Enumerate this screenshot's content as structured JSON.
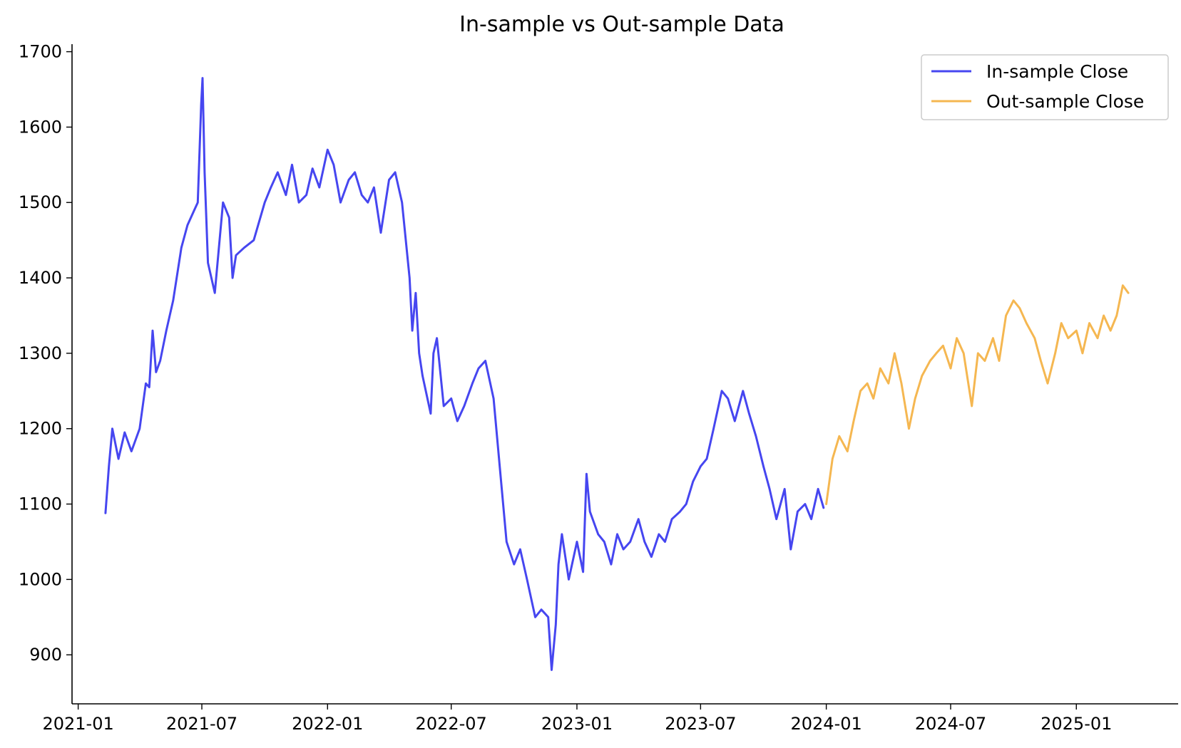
{
  "chart_data": {
    "type": "line",
    "title": "In-sample vs Out-sample Data",
    "xlabel": "",
    "ylabel": "",
    "x_type": "date",
    "xlim": [
      "2020-12-23",
      "2025-05-30"
    ],
    "ylim": [
      835,
      1710
    ],
    "grid": false,
    "legend_position": "top-right",
    "x_ticks": [
      "2021-01",
      "2021-07",
      "2022-01",
      "2022-07",
      "2023-01",
      "2023-07",
      "2024-01",
      "2024-07",
      "2025-01"
    ],
    "y_ticks": [
      900,
      1000,
      1100,
      1200,
      1300,
      1400,
      1500,
      1600,
      1700
    ],
    "series": [
      {
        "name": "In-sample Close",
        "color": "#4646f0",
        "x": [
          "2021-02-10",
          "2021-02-15",
          "2021-02-20",
          "2021-03-01",
          "2021-03-10",
          "2021-03-20",
          "2021-04-01",
          "2021-04-10",
          "2021-04-15",
          "2021-04-20",
          "2021-04-25",
          "2021-05-01",
          "2021-05-10",
          "2021-05-20",
          "2021-06-01",
          "2021-06-10",
          "2021-06-20",
          "2021-06-25",
          "2021-06-30",
          "2021-07-02",
          "2021-07-05",
          "2021-07-10",
          "2021-07-15",
          "2021-07-20",
          "2021-08-01",
          "2021-08-10",
          "2021-08-15",
          "2021-08-20",
          "2021-09-01",
          "2021-09-15",
          "2021-10-01",
          "2021-10-10",
          "2021-10-20",
          "2021-11-01",
          "2021-11-10",
          "2021-11-20",
          "2021-12-01",
          "2021-12-10",
          "2021-12-20",
          "2022-01-01",
          "2022-01-10",
          "2022-01-20",
          "2022-02-01",
          "2022-02-10",
          "2022-02-20",
          "2022-03-01",
          "2022-03-10",
          "2022-03-20",
          "2022-04-01",
          "2022-04-10",
          "2022-04-20",
          "2022-05-01",
          "2022-05-05",
          "2022-05-10",
          "2022-05-15",
          "2022-05-20",
          "2022-06-01",
          "2022-06-05",
          "2022-06-10",
          "2022-06-20",
          "2022-07-01",
          "2022-07-10",
          "2022-07-20",
          "2022-08-01",
          "2022-08-10",
          "2022-08-20",
          "2022-09-01",
          "2022-09-10",
          "2022-09-20",
          "2022-10-01",
          "2022-10-10",
          "2022-10-20",
          "2022-11-01",
          "2022-11-10",
          "2022-11-20",
          "2022-11-25",
          "2022-12-01",
          "2022-12-05",
          "2022-12-10",
          "2022-12-20",
          "2023-01-01",
          "2023-01-10",
          "2023-01-15",
          "2023-01-20",
          "2023-02-01",
          "2023-02-10",
          "2023-02-20",
          "2023-03-01",
          "2023-03-10",
          "2023-03-20",
          "2023-04-01",
          "2023-04-10",
          "2023-04-20",
          "2023-05-01",
          "2023-05-10",
          "2023-05-20",
          "2023-06-01",
          "2023-06-10",
          "2023-06-20",
          "2023-07-01",
          "2023-07-10",
          "2023-07-20",
          "2023-08-01",
          "2023-08-10",
          "2023-08-20",
          "2023-09-01",
          "2023-09-10",
          "2023-09-20",
          "2023-10-01",
          "2023-10-10",
          "2023-10-20",
          "2023-11-01",
          "2023-11-10",
          "2023-11-20",
          "2023-12-01",
          "2023-12-10",
          "2023-12-20",
          "2023-12-28"
        ],
        "values": [
          1088,
          1150,
          1200,
          1160,
          1195,
          1170,
          1200,
          1260,
          1255,
          1330,
          1275,
          1290,
          1330,
          1370,
          1440,
          1470,
          1490,
          1500,
          1630,
          1665,
          1540,
          1420,
          1400,
          1380,
          1500,
          1480,
          1400,
          1430,
          1440,
          1450,
          1500,
          1520,
          1540,
          1510,
          1550,
          1500,
          1510,
          1545,
          1520,
          1570,
          1550,
          1500,
          1530,
          1540,
          1510,
          1500,
          1520,
          1460,
          1530,
          1540,
          1500,
          1400,
          1330,
          1380,
          1300,
          1270,
          1220,
          1300,
          1320,
          1230,
          1240,
          1210,
          1230,
          1260,
          1280,
          1290,
          1240,
          1150,
          1050,
          1020,
          1040,
          1000,
          950,
          960,
          950,
          880,
          940,
          1020,
          1060,
          1000,
          1050,
          1010,
          1140,
          1090,
          1060,
          1050,
          1020,
          1060,
          1040,
          1050,
          1080,
          1050,
          1030,
          1060,
          1050,
          1080,
          1090,
          1100,
          1130,
          1150,
          1160,
          1200,
          1250,
          1240,
          1210,
          1250,
          1220,
          1190,
          1150,
          1120,
          1080,
          1120,
          1040,
          1090,
          1100,
          1080,
          1120,
          1095
        ]
      },
      {
        "name": "Out-sample Close",
        "color": "#f5b751",
        "x": [
          "2024-01-01",
          "2024-01-10",
          "2024-01-20",
          "2024-02-01",
          "2024-02-10",
          "2024-02-20",
          "2024-03-01",
          "2024-03-10",
          "2024-03-20",
          "2024-04-01",
          "2024-04-10",
          "2024-04-20",
          "2024-05-01",
          "2024-05-10",
          "2024-05-20",
          "2024-06-01",
          "2024-06-10",
          "2024-06-20",
          "2024-07-01",
          "2024-07-10",
          "2024-07-20",
          "2024-08-01",
          "2024-08-10",
          "2024-08-20",
          "2024-09-01",
          "2024-09-10",
          "2024-09-20",
          "2024-10-01",
          "2024-10-10",
          "2024-10-20",
          "2024-11-01",
          "2024-11-10",
          "2024-11-20",
          "2024-12-01",
          "2024-12-10",
          "2024-12-20",
          "2025-01-01",
          "2025-01-10",
          "2025-01-20",
          "2025-02-01",
          "2025-02-10",
          "2025-02-20",
          "2025-03-01",
          "2025-03-10",
          "2025-03-18"
        ],
        "values": [
          1100,
          1160,
          1190,
          1170,
          1210,
          1250,
          1260,
          1240,
          1280,
          1260,
          1300,
          1260,
          1200,
          1240,
          1270,
          1290,
          1300,
          1310,
          1280,
          1320,
          1300,
          1230,
          1300,
          1290,
          1320,
          1290,
          1350,
          1370,
          1360,
          1340,
          1320,
          1290,
          1260,
          1300,
          1340,
          1320,
          1330,
          1300,
          1340,
          1320,
          1350,
          1330,
          1350,
          1390,
          1380
        ]
      }
    ]
  }
}
